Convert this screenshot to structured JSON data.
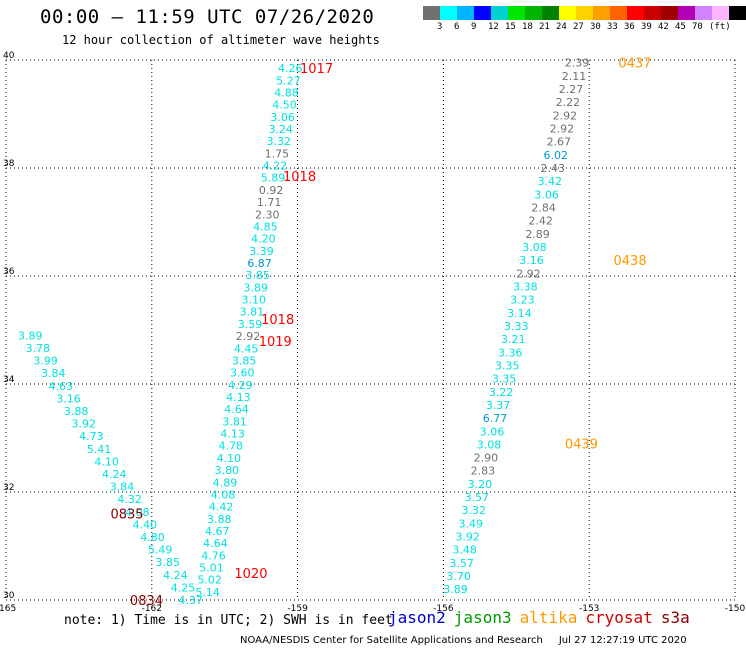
{
  "header": {
    "title": "00:00 – 11:59 UTC 07/26/2020",
    "subtitle": "12 hour collection of altimeter wave heights"
  },
  "colorbar": {
    "colors": [
      "#707070",
      "#00ffff",
      "#00b4ff",
      "#0000ff",
      "#00d2d2",
      "#00e600",
      "#00b400",
      "#008200",
      "#ffff00",
      "#ffd200",
      "#ffa000",
      "#ff6400",
      "#ff0000",
      "#c80000",
      "#a00000",
      "#b400b4",
      "#d282ff",
      "#ffb4ff",
      "#000000"
    ],
    "labels": [
      "3",
      "6",
      "9",
      "12",
      "15",
      "18",
      "21",
      "24",
      "27",
      "30",
      "33",
      "36",
      "39",
      "42",
      "45",
      "70",
      "(ft)"
    ]
  },
  "map": {
    "lon_labels": [
      "-165",
      "-162",
      "-159",
      "-156",
      "-153",
      "-150"
    ],
    "lat_labels": [
      "40",
      "38",
      "36",
      "34",
      "32",
      "30"
    ],
    "lon_range": [
      -165,
      -150
    ],
    "lat_range": [
      30,
      40
    ],
    "point_colors": {
      "cyan": "#00e0e0",
      "gray": "#707070",
      "blue": "#0099cc"
    },
    "tracks": [
      {
        "lon0": -164.5,
        "lat0": 34.9,
        "lon1": -161.2,
        "lat1": 30.0,
        "values": [
          [
            "3.89",
            "cyan"
          ],
          [
            "3.78",
            "cyan"
          ],
          [
            "3.99",
            "cyan"
          ],
          [
            "3.84",
            "cyan"
          ],
          [
            "4.63",
            "cyan"
          ],
          [
            "3.16",
            "cyan"
          ],
          [
            "3.88",
            "cyan"
          ],
          [
            "3.92",
            "cyan"
          ],
          [
            "4.73",
            "cyan"
          ],
          [
            "5.41",
            "cyan"
          ],
          [
            "4.10",
            "cyan"
          ],
          [
            "4.24",
            "cyan"
          ],
          [
            "3.84",
            "cyan"
          ],
          [
            "4.32",
            "cyan"
          ],
          [
            "4.08",
            "cyan"
          ],
          [
            "4.40",
            "cyan"
          ],
          [
            "4.80",
            "cyan"
          ],
          [
            "5.49",
            "cyan"
          ],
          [
            "3.85",
            "cyan"
          ],
          [
            "4.24",
            "cyan"
          ],
          [
            "4.25",
            "cyan"
          ],
          [
            "4.37",
            "cyan"
          ]
        ]
      },
      {
        "lon0": -159.15,
        "lat0": 39.85,
        "lon1": -160.85,
        "lat1": 30.15,
        "values": [
          [
            "4.26",
            "cyan"
          ],
          [
            "5.27",
            "cyan"
          ],
          [
            "4.88",
            "cyan"
          ],
          [
            "4.50",
            "cyan"
          ],
          [
            "3.06",
            "cyan"
          ],
          [
            "3.24",
            "cyan"
          ],
          [
            "3.32",
            "cyan"
          ],
          [
            "1.75",
            "gray"
          ],
          [
            "4.22",
            "cyan"
          ],
          [
            "5.89",
            "cyan"
          ],
          [
            "0.92",
            "gray"
          ],
          [
            "1.71",
            "gray"
          ],
          [
            "2.30",
            "gray"
          ],
          [
            "4.85",
            "cyan"
          ],
          [
            "4.20",
            "cyan"
          ],
          [
            "3.39",
            "cyan"
          ],
          [
            "6.87",
            "blue"
          ],
          [
            "3.85",
            "cyan"
          ],
          [
            "3.89",
            "cyan"
          ],
          [
            "3.10",
            "cyan"
          ],
          [
            "3.81",
            "cyan"
          ],
          [
            "3.59",
            "cyan"
          ],
          [
            "2.92",
            "gray"
          ],
          [
            "4.45",
            "cyan"
          ],
          [
            "3.85",
            "cyan"
          ],
          [
            "3.60",
            "cyan"
          ],
          [
            "4.29",
            "cyan"
          ],
          [
            "4.13",
            "cyan"
          ],
          [
            "4.64",
            "cyan"
          ],
          [
            "3.81",
            "cyan"
          ],
          [
            "4.13",
            "cyan"
          ],
          [
            "4.78",
            "cyan"
          ],
          [
            "4.10",
            "cyan"
          ],
          [
            "3.80",
            "cyan"
          ],
          [
            "4.89",
            "cyan"
          ],
          [
            "4.08",
            "cyan"
          ],
          [
            "4.42",
            "cyan"
          ],
          [
            "3.88",
            "cyan"
          ],
          [
            "4.67",
            "cyan"
          ],
          [
            "4.64",
            "cyan"
          ],
          [
            "4.76",
            "cyan"
          ],
          [
            "5.01",
            "cyan"
          ],
          [
            "5.02",
            "cyan"
          ],
          [
            "5.14",
            "cyan"
          ]
        ]
      },
      {
        "lon0": -153.25,
        "lat0": 39.95,
        "lon1": -155.75,
        "lat1": 30.2,
        "values": [
          [
            "2.39",
            "gray"
          ],
          [
            "2.11",
            "gray"
          ],
          [
            "2.27",
            "gray"
          ],
          [
            "2.22",
            "gray"
          ],
          [
            "2.92",
            "gray"
          ],
          [
            "2.92",
            "gray"
          ],
          [
            "2.67",
            "gray"
          ],
          [
            "6.02",
            "blue"
          ],
          [
            "2.43",
            "gray"
          ],
          [
            "3.42",
            "cyan"
          ],
          [
            "3.06",
            "cyan"
          ],
          [
            "2.84",
            "gray"
          ],
          [
            "2.42",
            "gray"
          ],
          [
            "2.89",
            "gray"
          ],
          [
            "3.08",
            "cyan"
          ],
          [
            "3.16",
            "cyan"
          ],
          [
            "2.92",
            "gray"
          ],
          [
            "3.38",
            "cyan"
          ],
          [
            "3.23",
            "cyan"
          ],
          [
            "3.14",
            "cyan"
          ],
          [
            "3.33",
            "cyan"
          ],
          [
            "3.21",
            "cyan"
          ],
          [
            "3.36",
            "cyan"
          ],
          [
            "3.35",
            "cyan"
          ],
          [
            "3.35",
            "cyan"
          ],
          [
            "3.22",
            "cyan"
          ],
          [
            "3.37",
            "cyan"
          ],
          [
            "6.77",
            "blue"
          ],
          [
            "3.06",
            "cyan"
          ],
          [
            "3.08",
            "cyan"
          ],
          [
            "2.90",
            "gray"
          ],
          [
            "2.83",
            "gray"
          ],
          [
            "3.20",
            "cyan"
          ],
          [
            "3.57",
            "cyan"
          ],
          [
            "3.32",
            "cyan"
          ],
          [
            "3.49",
            "cyan"
          ],
          [
            "3.92",
            "cyan"
          ],
          [
            "3.48",
            "cyan"
          ],
          [
            "3.57",
            "cyan"
          ],
          [
            "3.70",
            "cyan"
          ],
          [
            "3.89",
            "cyan"
          ]
        ]
      }
    ],
    "time_labels": [
      {
        "text": "1017",
        "color": "#ff0000",
        "lon": -158.95,
        "lat": 39.85
      },
      {
        "text": "1018",
        "color": "#ff0000",
        "lon": -159.3,
        "lat": 37.85
      },
      {
        "text": "1018",
        "color": "#ff0000",
        "lon": -159.75,
        "lat": 35.2
      },
      {
        "text": "1019",
        "color": "#ff0000",
        "lon": -159.8,
        "lat": 34.8
      },
      {
        "text": "1020",
        "color": "#ff0000",
        "lon": -160.3,
        "lat": 30.5
      },
      {
        "text": "0835",
        "color": "#8b0000",
        "lon": -162.85,
        "lat": 31.6
      },
      {
        "text": "0834",
        "color": "#8b0000",
        "lon": -162.45,
        "lat": 30.0
      },
      {
        "text": "0437",
        "color": "#ff9900",
        "lon": -152.4,
        "lat": 39.95
      },
      {
        "text": "0438",
        "color": "#ff9900",
        "lon": -152.5,
        "lat": 36.3
      },
      {
        "text": "0439",
        "color": "#ff9900",
        "lon": -153.5,
        "lat": 32.9
      }
    ]
  },
  "footer": {
    "note": "note: 1) Time is in UTC; 2) SWH is in feet",
    "legend": [
      {
        "label": "jason2",
        "color": "#0000cc"
      },
      {
        "label": "jason3",
        "color": "#009900"
      },
      {
        "label": "altika",
        "color": "#ff9900"
      },
      {
        "label": "cryosat",
        "color": "#cc0000"
      },
      {
        "label": "s3a",
        "color": "#8b0000"
      }
    ],
    "credit": "NOAA/NESDIS Center for Satellite Applications and Research",
    "timestamp": "Jul 27 12:27:19 UTC 2020"
  }
}
